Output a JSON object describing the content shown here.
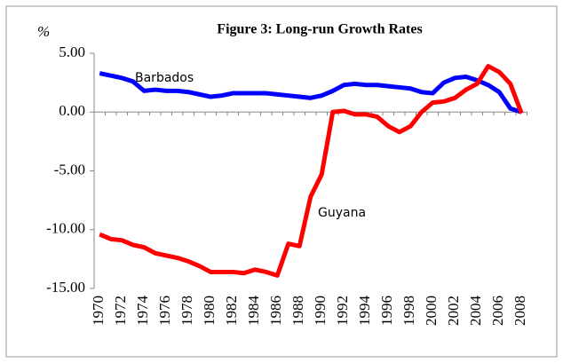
{
  "chart_data": {
    "type": "line",
    "title": "Figure 3: Long-run Growth Rates",
    "y_label": "%",
    "categories": [
      "1970",
      null,
      "1972",
      null,
      "1974",
      null,
      "1976",
      null,
      "1978",
      null,
      "1980",
      null,
      "1982",
      null,
      "1984",
      null,
      "1986",
      null,
      "1988",
      null,
      "1990",
      null,
      "1992",
      null,
      "1994",
      null,
      "1996",
      null,
      "1998",
      null,
      "2000",
      null,
      "2002",
      null,
      "2004",
      null,
      "2006",
      null,
      "2008"
    ],
    "series": [
      {
        "name": "Barbados",
        "color": "#0000ff",
        "values": [
          3.3,
          3.1,
          2.9,
          2.6,
          1.8,
          1.9,
          1.8,
          1.8,
          1.7,
          1.5,
          1.3,
          1.4,
          1.6,
          1.6,
          1.6,
          1.6,
          1.5,
          1.4,
          1.3,
          1.2,
          1.4,
          1.8,
          2.3,
          2.4,
          2.3,
          2.3,
          2.2,
          2.1,
          2.0,
          1.7,
          1.6,
          2.5,
          2.9,
          3.0,
          2.7,
          2.3,
          1.7,
          0.3,
          0.0
        ]
      },
      {
        "name": "Guyana",
        "color": "#ff0000",
        "values": [
          -10.4,
          -10.8,
          -10.9,
          -11.3,
          -11.5,
          -12.0,
          -12.2,
          -12.4,
          -12.7,
          -13.1,
          -13.6,
          -13.6,
          -13.6,
          -13.7,
          -13.4,
          -13.6,
          -13.9,
          -11.2,
          -11.4,
          -7.2,
          -5.3,
          0.0,
          0.1,
          -0.2,
          -0.2,
          -0.4,
          -1.2,
          -1.7,
          -1.2,
          0.0,
          0.8,
          0.9,
          1.2,
          1.9,
          2.4,
          3.9,
          3.4,
          2.4,
          -0.1
        ]
      }
    ],
    "ylim": [
      -15,
      5
    ],
    "yticks": [
      {
        "value": -15,
        "label": "-15.00"
      },
      {
        "value": -10,
        "label": "-10.00"
      },
      {
        "value": -5,
        "label": "-5.00"
      },
      {
        "value": 0,
        "label": "0.00"
      },
      {
        "value": 5,
        "label": "5.00"
      }
    ],
    "grid": false
  }
}
